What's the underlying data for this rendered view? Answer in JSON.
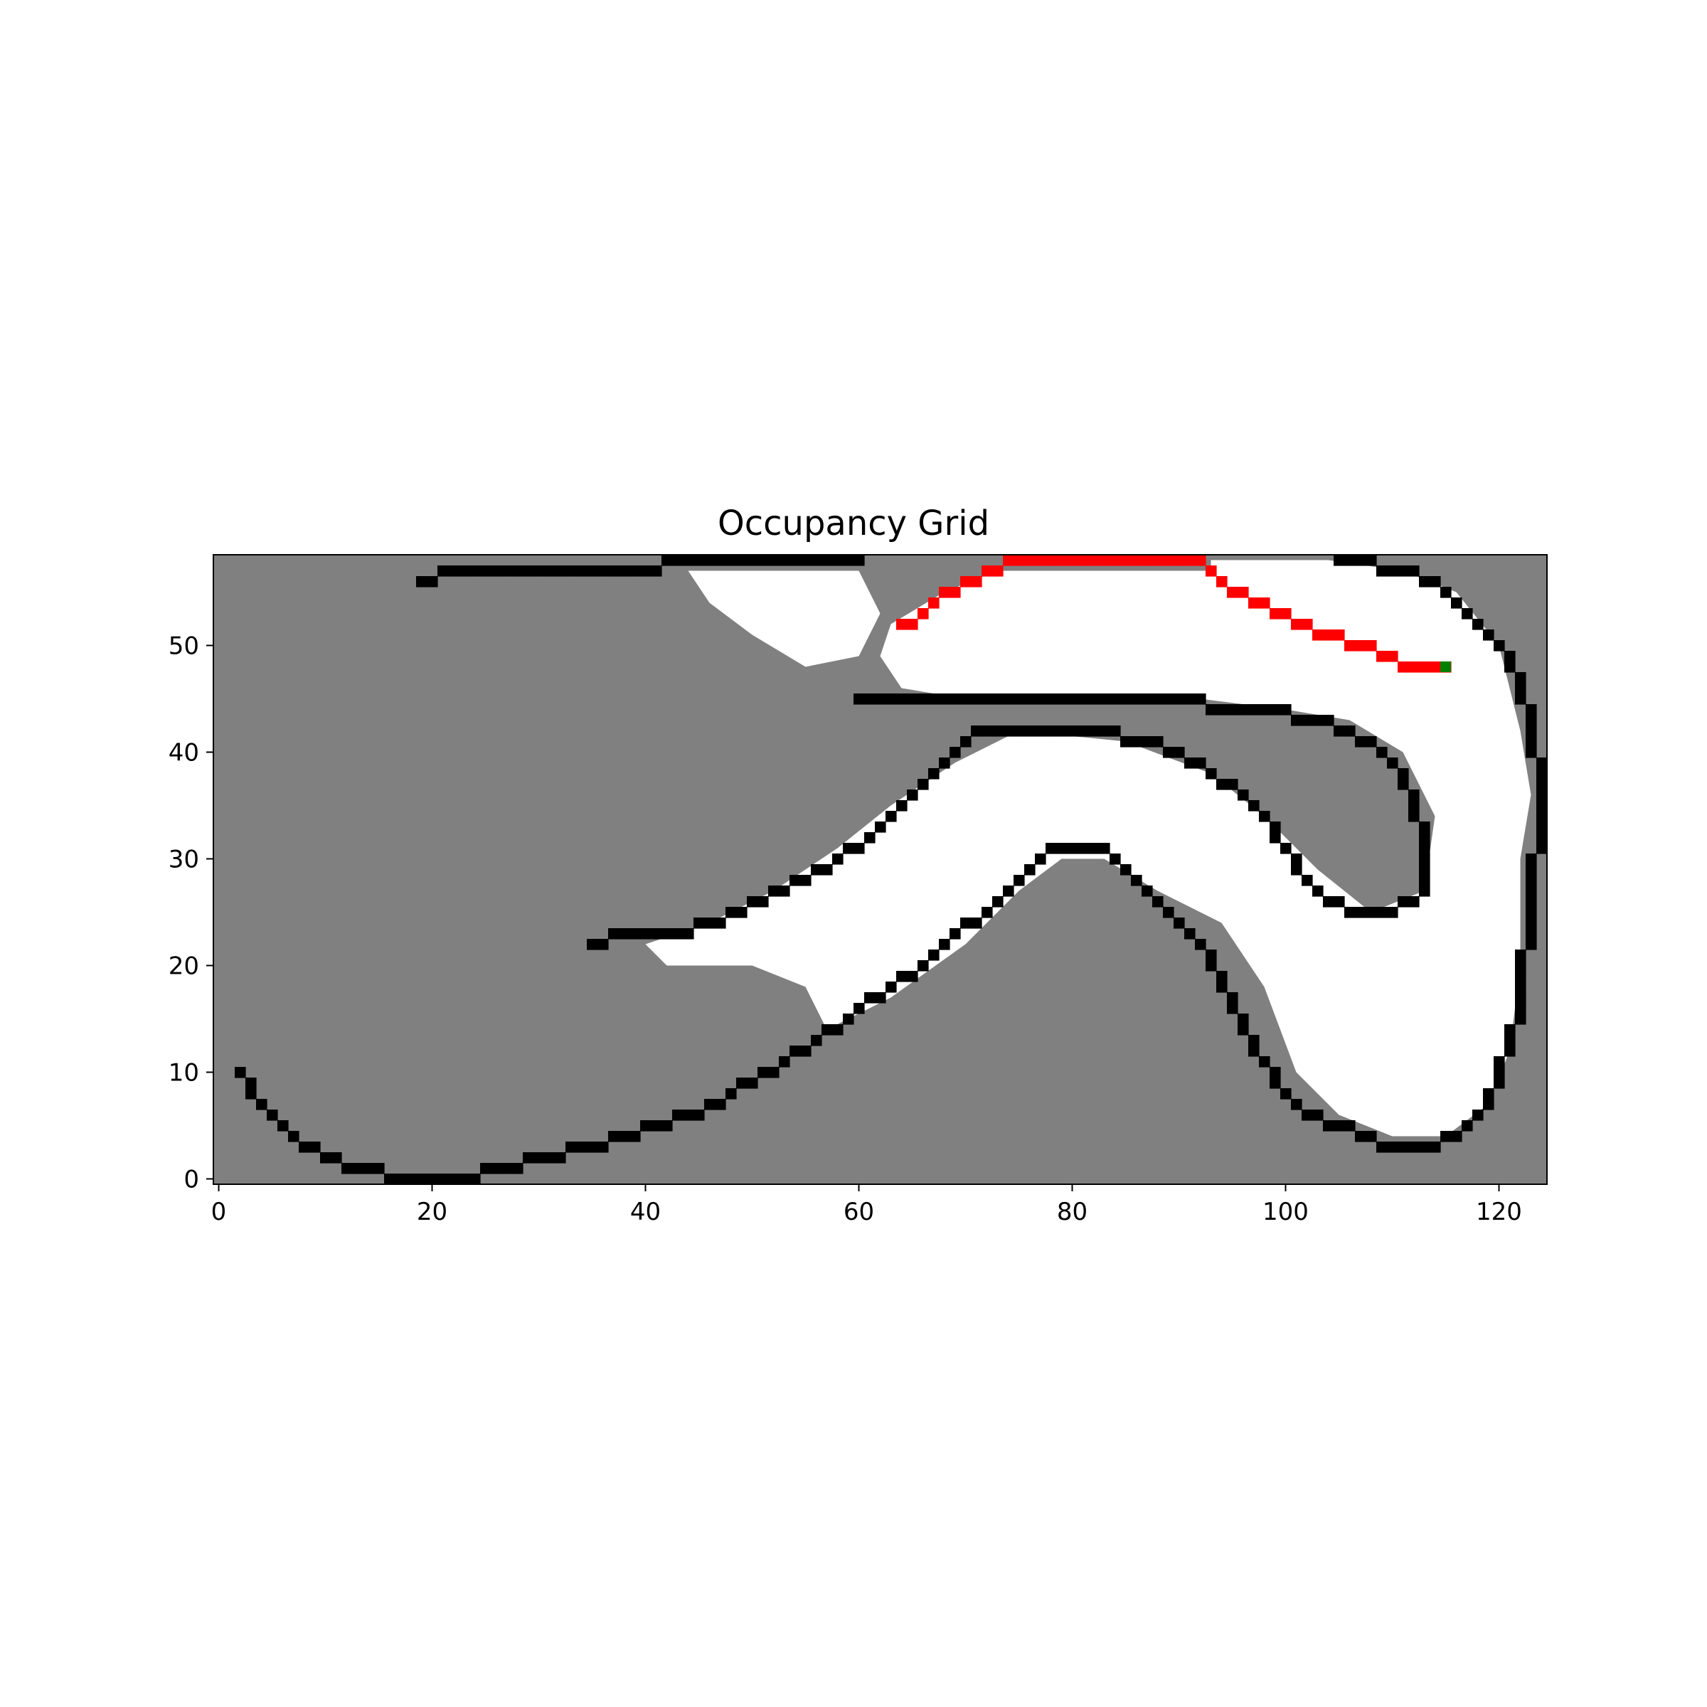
{
  "chart_data": {
    "type": "heatmap",
    "title": "Occupancy Grid",
    "xlabel": "",
    "ylabel": "",
    "xlim": [
      -0.5,
      124.5
    ],
    "ylim": [
      -0.5,
      58.5
    ],
    "x_ticks": [
      0,
      20,
      40,
      60,
      80,
      100,
      120
    ],
    "y_ticks": [
      0,
      10,
      20,
      30,
      40,
      50
    ],
    "x_tick_labels": [
      "0",
      "20",
      "40",
      "60",
      "80",
      "100",
      "120"
    ],
    "y_tick_labels": [
      "0",
      "10",
      "20",
      "30",
      "40",
      "50"
    ],
    "grid": false,
    "legend": "none",
    "colors": {
      "unknown": "#808080",
      "free": "#ffffff",
      "occupied": "#000000",
      "path": "#ff0000",
      "goal": "#008000"
    },
    "free_polygons": [
      [
        [
          57,
          14
        ],
        [
          63,
          17
        ],
        [
          70,
          22
        ],
        [
          75,
          27
        ],
        [
          79,
          30
        ],
        [
          83,
          30
        ],
        [
          88,
          27
        ],
        [
          94,
          24
        ],
        [
          98,
          18
        ],
        [
          101,
          10
        ],
        [
          105,
          6
        ],
        [
          110,
          4
        ],
        [
          115,
          4
        ],
        [
          119,
          7
        ],
        [
          121,
          12
        ],
        [
          122,
          20
        ],
        [
          122,
          30
        ],
        [
          123,
          36
        ],
        [
          122,
          42
        ],
        [
          120,
          50
        ],
        [
          116,
          55
        ],
        [
          111,
          57
        ],
        [
          104,
          58
        ],
        [
          93,
          58
        ],
        [
          93,
          57
        ],
        [
          80,
          57
        ],
        [
          73,
          57
        ],
        [
          68,
          55
        ],
        [
          63,
          52
        ],
        [
          62,
          49
        ],
        [
          64,
          46
        ],
        [
          70,
          45
        ],
        [
          92,
          45
        ],
        [
          100,
          44
        ],
        [
          106,
          43
        ],
        [
          111,
          40
        ],
        [
          114,
          34
        ],
        [
          113,
          27
        ],
        [
          108,
          25
        ],
        [
          103,
          29
        ],
        [
          98,
          34
        ],
        [
          93,
          38
        ],
        [
          85,
          41
        ],
        [
          75,
          42
        ],
        [
          69,
          39
        ],
        [
          63,
          35
        ],
        [
          58,
          31
        ],
        [
          52,
          27
        ],
        [
          46,
          24
        ],
        [
          40,
          22
        ],
        [
          42,
          20
        ],
        [
          50,
          20
        ],
        [
          55,
          18
        ]
      ],
      [
        [
          44,
          57
        ],
        [
          60,
          57
        ],
        [
          62,
          53
        ],
        [
          60,
          49
        ],
        [
          55,
          48
        ],
        [
          50,
          51
        ],
        [
          46,
          54
        ]
      ]
    ],
    "occupied_polylines": [
      [
        [
          2,
          10
        ],
        [
          3,
          8
        ],
        [
          5,
          6
        ],
        [
          7,
          4
        ],
        [
          10,
          2
        ],
        [
          13,
          1
        ],
        [
          17,
          0
        ],
        [
          23,
          0
        ],
        [
          27,
          1
        ],
        [
          31,
          2
        ],
        [
          35,
          3
        ],
        [
          38,
          4
        ],
        [
          41,
          5
        ],
        [
          45,
          6
        ],
        [
          48,
          8
        ],
        [
          52,
          10
        ],
        [
          56,
          13
        ],
        [
          59,
          15
        ],
        [
          63,
          18
        ],
        [
          66,
          20
        ],
        [
          69,
          23
        ],
        [
          72,
          25
        ],
        [
          75,
          28
        ],
        [
          77,
          30
        ],
        [
          79,
          31
        ],
        [
          82,
          31
        ],
        [
          84,
          30
        ],
        [
          86,
          28
        ],
        [
          88,
          26
        ],
        [
          90,
          24
        ],
        [
          92,
          22
        ],
        [
          94,
          18
        ],
        [
          96,
          14
        ],
        [
          98,
          11
        ],
        [
          100,
          8
        ],
        [
          102,
          6
        ],
        [
          105,
          5
        ],
        [
          107,
          4
        ],
        [
          110,
          3
        ],
        [
          114,
          3
        ],
        [
          117,
          5
        ],
        [
          119,
          7
        ],
        [
          120,
          10
        ],
        [
          121,
          13
        ],
        [
          122,
          16
        ],
        [
          122,
          20
        ],
        [
          123,
          24
        ],
        [
          123,
          29
        ],
        [
          124,
          33
        ],
        [
          124,
          37
        ],
        [
          123,
          42
        ],
        [
          122,
          46
        ],
        [
          120,
          50
        ],
        [
          117,
          53
        ],
        [
          114,
          56
        ],
        [
          111,
          57
        ],
        [
          105,
          58
        ]
      ],
      [
        [
          35,
          22
        ],
        [
          38,
          23
        ],
        [
          43,
          23
        ],
        [
          47,
          24
        ],
        [
          51,
          26
        ],
        [
          55,
          28
        ],
        [
          58,
          30
        ],
        [
          61,
          32
        ],
        [
          64,
          35
        ],
        [
          67,
          38
        ],
        [
          69,
          40
        ],
        [
          71,
          42
        ],
        [
          74,
          42
        ],
        [
          79,
          42
        ],
        [
          83,
          42
        ],
        [
          86,
          41
        ],
        [
          90,
          40
        ],
        [
          93,
          38
        ],
        [
          96,
          36
        ],
        [
          98,
          34
        ],
        [
          100,
          31
        ],
        [
          102,
          28
        ],
        [
          104,
          26
        ],
        [
          107,
          25
        ],
        [
          110,
          25
        ],
        [
          112,
          26
        ],
        [
          113,
          28
        ],
        [
          113,
          32
        ],
        [
          112,
          35
        ],
        [
          111,
          38
        ],
        [
          109,
          40
        ],
        [
          106,
          42
        ],
        [
          103,
          43
        ],
        [
          98,
          44
        ],
        [
          94,
          44
        ],
        [
          90,
          45
        ],
        [
          80,
          45
        ],
        [
          70,
          45
        ],
        [
          60,
          45
        ]
      ],
      [
        [
          19,
          56
        ],
        [
          22,
          57
        ],
        [
          26,
          57
        ],
        [
          30,
          57
        ],
        [
          34,
          57
        ],
        [
          38,
          57
        ],
        [
          41,
          57
        ],
        [
          42,
          58
        ],
        [
          50,
          58
        ],
        [
          55,
          58
        ],
        [
          60,
          58
        ]
      ]
    ],
    "path": [
      [
        115,
        48
      ],
      [
        114,
        48
      ],
      [
        113,
        48
      ],
      [
        112,
        48
      ],
      [
        111,
        48
      ],
      [
        110,
        49
      ],
      [
        109,
        49
      ],
      [
        108,
        50
      ],
      [
        107,
        50
      ],
      [
        106,
        50
      ],
      [
        105,
        51
      ],
      [
        104,
        51
      ],
      [
        103,
        51
      ],
      [
        102,
        52
      ],
      [
        101,
        52
      ],
      [
        100,
        53
      ],
      [
        99,
        53
      ],
      [
        98,
        54
      ],
      [
        97,
        54
      ],
      [
        96,
        55
      ],
      [
        95,
        55
      ],
      [
        94,
        56
      ],
      [
        93,
        57
      ],
      [
        92,
        58
      ],
      [
        91,
        58
      ],
      [
        90,
        58
      ],
      [
        89,
        58
      ],
      [
        88,
        58
      ],
      [
        87,
        58
      ],
      [
        86,
        58
      ],
      [
        85,
        58
      ],
      [
        84,
        58
      ],
      [
        83,
        58
      ],
      [
        82,
        58
      ],
      [
        81,
        58
      ],
      [
        80,
        58
      ],
      [
        79,
        58
      ],
      [
        78,
        58
      ],
      [
        77,
        58
      ],
      [
        76,
        58
      ],
      [
        75,
        58
      ],
      [
        74,
        58
      ],
      [
        73,
        57
      ],
      [
        72,
        57
      ],
      [
        71,
        56
      ],
      [
        70,
        56
      ],
      [
        69,
        55
      ],
      [
        68,
        55
      ],
      [
        67,
        54
      ],
      [
        66,
        53
      ],
      [
        65,
        52
      ],
      [
        64,
        52
      ]
    ],
    "goal": [
      115,
      48
    ]
  }
}
